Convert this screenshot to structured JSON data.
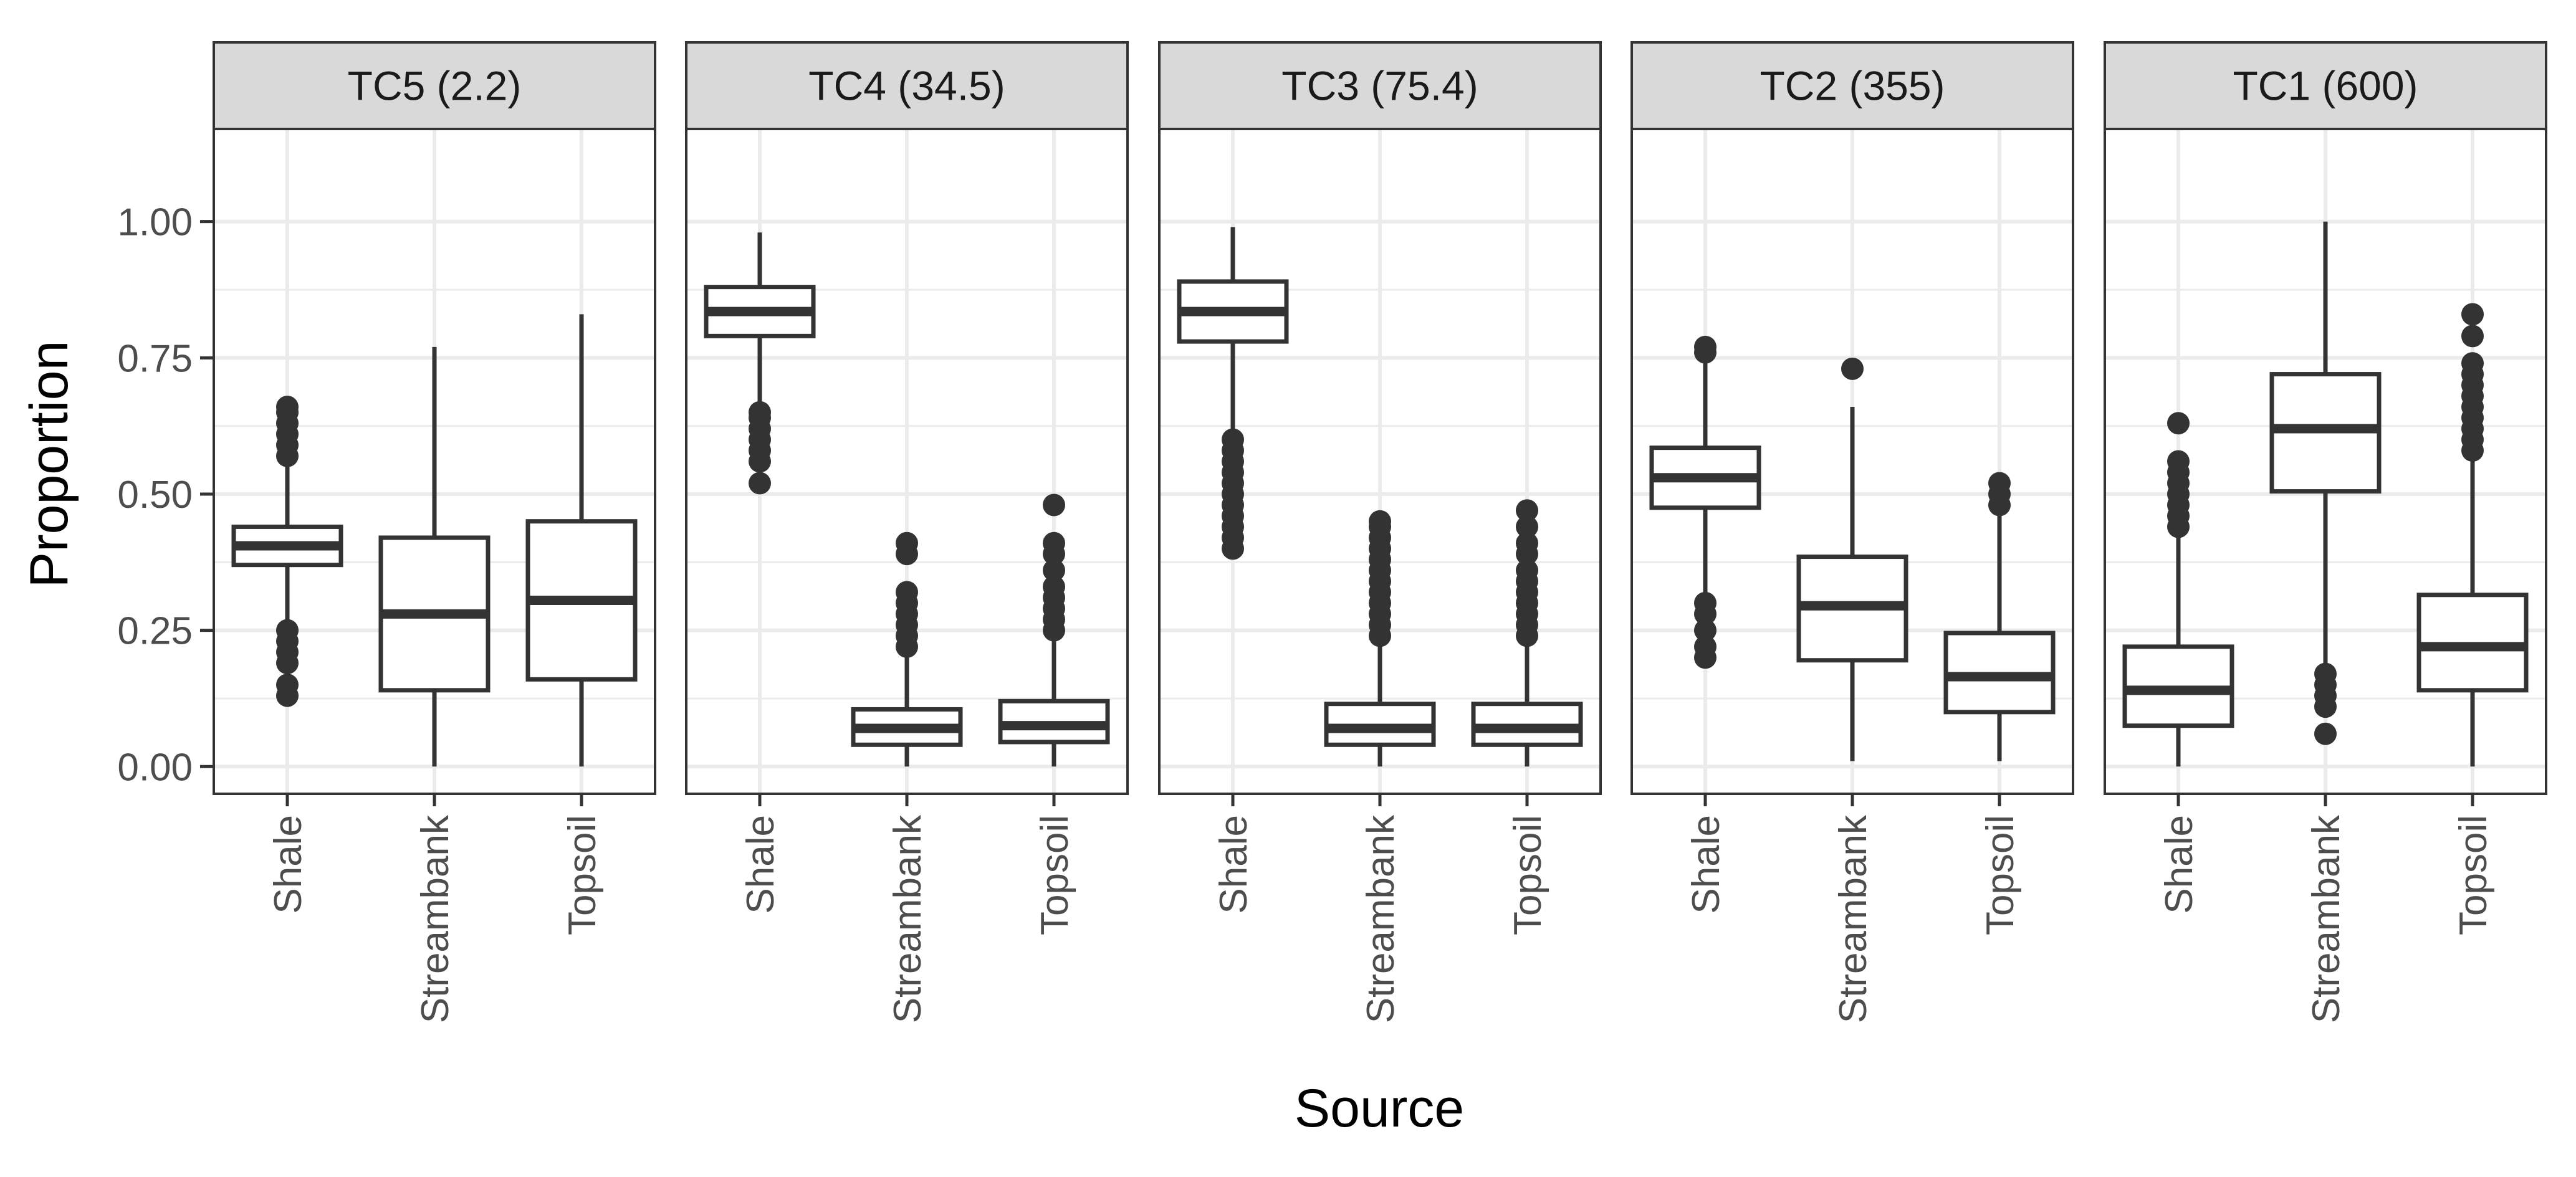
{
  "chart_data": {
    "type": "boxplot",
    "title": "",
    "xlabel": "Source",
    "ylabel": "Proportion",
    "ylim": [
      -0.05,
      1.17
    ],
    "yticks": [
      0,
      0.25,
      0.5,
      0.75,
      1.0
    ],
    "ytick_labels": [
      "0.00",
      "0.25",
      "0.50",
      "0.75",
      "1.00"
    ],
    "categories": [
      "Shale",
      "Streambank",
      "Topsoil"
    ],
    "grid": true,
    "colors": {
      "box_stroke": "#333333",
      "outlier": "#333333",
      "strip_fill": "#d9d9d9",
      "panel_border": "#333333",
      "grid_major": "#ebebeb",
      "background": "#ffffff"
    },
    "panels": [
      {
        "label": "TC5 (2.2)",
        "boxes": [
          {
            "category": "Shale",
            "whisker_low": 0.26,
            "q1": 0.37,
            "median": 0.405,
            "q3": 0.44,
            "whisker_high": 0.55,
            "outliers": [
              0.13,
              0.15,
              0.19,
              0.21,
              0.23,
              0.25,
              0.57,
              0.59,
              0.61,
              0.63,
              0.65,
              0.66
            ]
          },
          {
            "category": "Streambank",
            "whisker_low": 0.0,
            "q1": 0.14,
            "median": 0.28,
            "q3": 0.42,
            "whisker_high": 0.77,
            "outliers": []
          },
          {
            "category": "Topsoil",
            "whisker_low": 0.0,
            "q1": 0.16,
            "median": 0.305,
            "q3": 0.45,
            "whisker_high": 0.83,
            "outliers": []
          }
        ]
      },
      {
        "label": "TC4 (34.5)",
        "boxes": [
          {
            "category": "Shale",
            "whisker_low": 0.67,
            "q1": 0.79,
            "median": 0.835,
            "q3": 0.88,
            "whisker_high": 0.98,
            "outliers": [
              0.52,
              0.56,
              0.58,
              0.6,
              0.62,
              0.64,
              0.65
            ]
          },
          {
            "category": "Streambank",
            "whisker_low": 0.0,
            "q1": 0.04,
            "median": 0.07,
            "q3": 0.105,
            "whisker_high": 0.2,
            "outliers": [
              0.22,
              0.24,
              0.26,
              0.28,
              0.3,
              0.32,
              0.39,
              0.41
            ]
          },
          {
            "category": "Topsoil",
            "whisker_low": 0.0,
            "q1": 0.045,
            "median": 0.075,
            "q3": 0.12,
            "whisker_high": 0.23,
            "outliers": [
              0.25,
              0.27,
              0.29,
              0.31,
              0.33,
              0.36,
              0.39,
              0.41,
              0.48
            ]
          }
        ]
      },
      {
        "label": "TC3 (75.4)",
        "boxes": [
          {
            "category": "Shale",
            "whisker_low": 0.62,
            "q1": 0.78,
            "median": 0.835,
            "q3": 0.89,
            "whisker_high": 0.99,
            "outliers": [
              0.4,
              0.42,
              0.44,
              0.46,
              0.48,
              0.5,
              0.52,
              0.54,
              0.56,
              0.58,
              0.6
            ]
          },
          {
            "category": "Streambank",
            "whisker_low": 0.0,
            "q1": 0.04,
            "median": 0.07,
            "q3": 0.115,
            "whisker_high": 0.22,
            "outliers": [
              0.24,
              0.26,
              0.28,
              0.3,
              0.32,
              0.34,
              0.36,
              0.38,
              0.4,
              0.42,
              0.44,
              0.45
            ]
          },
          {
            "category": "Topsoil",
            "whisker_low": 0.0,
            "q1": 0.04,
            "median": 0.07,
            "q3": 0.115,
            "whisker_high": 0.22,
            "outliers": [
              0.24,
              0.26,
              0.28,
              0.3,
              0.32,
              0.34,
              0.36,
              0.39,
              0.41,
              0.44,
              0.47
            ]
          }
        ]
      },
      {
        "label": "TC2 (355)",
        "boxes": [
          {
            "category": "Shale",
            "whisker_low": 0.31,
            "q1": 0.475,
            "median": 0.53,
            "q3": 0.585,
            "whisker_high": 0.75,
            "outliers": [
              0.2,
              0.22,
              0.25,
              0.28,
              0.3,
              0.76,
              0.77
            ]
          },
          {
            "category": "Streambank",
            "whisker_low": 0.01,
            "q1": 0.195,
            "median": 0.295,
            "q3": 0.385,
            "whisker_high": 0.66,
            "outliers": [
              0.73
            ]
          },
          {
            "category": "Topsoil",
            "whisker_low": 0.01,
            "q1": 0.1,
            "median": 0.165,
            "q3": 0.245,
            "whisker_high": 0.46,
            "outliers": [
              0.48,
              0.5,
              0.52
            ]
          }
        ]
      },
      {
        "label": "TC1 (600)",
        "boxes": [
          {
            "category": "Shale",
            "whisker_low": 0.0,
            "q1": 0.075,
            "median": 0.14,
            "q3": 0.22,
            "whisker_high": 0.42,
            "outliers": [
              0.44,
              0.46,
              0.48,
              0.5,
              0.52,
              0.54,
              0.56,
              0.63
            ]
          },
          {
            "category": "Streambank",
            "whisker_low": 0.18,
            "q1": 0.505,
            "median": 0.62,
            "q3": 0.72,
            "whisker_high": 1.0,
            "outliers": [
              0.06,
              0.11,
              0.13,
              0.15,
              0.17
            ]
          },
          {
            "category": "Topsoil",
            "whisker_low": 0.0,
            "q1": 0.14,
            "median": 0.22,
            "q3": 0.315,
            "whisker_high": 0.56,
            "outliers": [
              0.58,
              0.6,
              0.62,
              0.64,
              0.66,
              0.68,
              0.7,
              0.72,
              0.74,
              0.79,
              0.83
            ]
          }
        ]
      }
    ]
  }
}
